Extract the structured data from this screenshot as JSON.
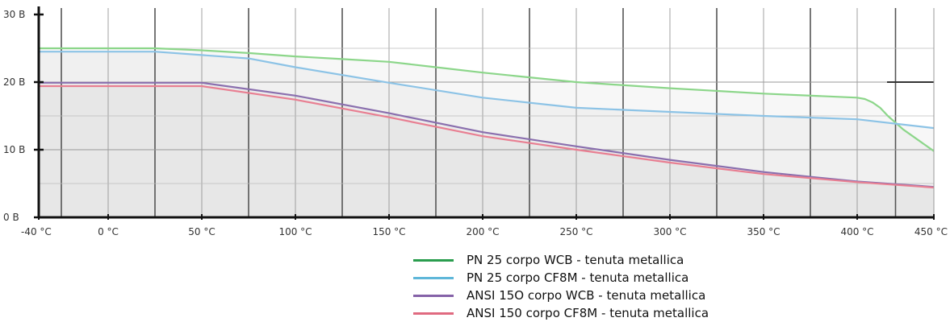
{
  "chart_data": {
    "type": "line",
    "title": "",
    "xlabel": "",
    "ylabel": "",
    "x_ticks": [
      {
        "value": -40,
        "label": "-40 °C"
      },
      {
        "value": 0,
        "label": "0 °C"
      },
      {
        "value": 50,
        "label": "50 °C"
      },
      {
        "value": 100,
        "label": "100 °C"
      },
      {
        "value": 150,
        "label": "150 °C"
      },
      {
        "value": 200,
        "label": "200 °C"
      },
      {
        "value": 250,
        "label": "250 °C"
      },
      {
        "value": 300,
        "label": "300 °C"
      },
      {
        "value": 350,
        "label": "350 °C"
      },
      {
        "value": 400,
        "label": "400 °C"
      },
      {
        "value": 450,
        "label": "450 °C"
      }
    ],
    "y_ticks": [
      {
        "value": 0,
        "label": "0 B"
      },
      {
        "value": 10,
        "label": "10 B"
      },
      {
        "value": 20,
        "label": "20 B"
      },
      {
        "value": 30,
        "label": "30 B"
      }
    ],
    "xlim": [
      -40,
      450
    ],
    "ylim": [
      0,
      31
    ],
    "grid": true,
    "legend_position": "bottom-center",
    "series": [
      {
        "name": "PN 25 corpo WCB - tenuta metallica",
        "color": "#2a9d4e",
        "line_color": "#8cd68a",
        "x": [
          -40,
          25,
          50,
          75,
          100,
          125,
          150,
          175,
          200,
          250,
          300,
          350,
          400,
          405,
          410,
          415,
          420,
          430,
          450
        ],
        "y": [
          25,
          25,
          24.7,
          24.3,
          23.8,
          23.4,
          23,
          22.2,
          21.4,
          20,
          19.1,
          18.3,
          17.7,
          17.5,
          17,
          16.2,
          15,
          13,
          9.8
        ]
      },
      {
        "name": "PN 25 corpo CF8M - tenuta metallica",
        "color": "#5fb7d9",
        "line_color": "#8cc3e6",
        "x": [
          -40,
          25,
          50,
          75,
          100,
          150,
          200,
          250,
          300,
          350,
          400,
          450
        ],
        "y": [
          24.5,
          24.5,
          24,
          23.5,
          22.2,
          19.9,
          17.7,
          16.2,
          15.6,
          15,
          14.5,
          13.2
        ]
      },
      {
        "name": "ANSI 15O corpo WCB - tenuta metallica",
        "color": "#8562a8",
        "line_color": "#8a6fae",
        "x": [
          -40,
          50,
          100,
          150,
          200,
          250,
          300,
          350,
          400,
          450
        ],
        "y": [
          19.9,
          19.9,
          18,
          15.4,
          12.6,
          10.5,
          8.5,
          6.7,
          5.3,
          4.5
        ]
      },
      {
        "name": "ANSI 150 corpo CF8M - tenuta metallica",
        "color": "#e06a80",
        "line_color": "#e87f92",
        "x": [
          -40,
          50,
          100,
          150,
          200,
          250,
          300,
          350,
          400,
          450
        ],
        "y": [
          19.4,
          19.4,
          17.4,
          14.8,
          12,
          10,
          8.1,
          6.4,
          5.2,
          4.4
        ]
      }
    ]
  }
}
